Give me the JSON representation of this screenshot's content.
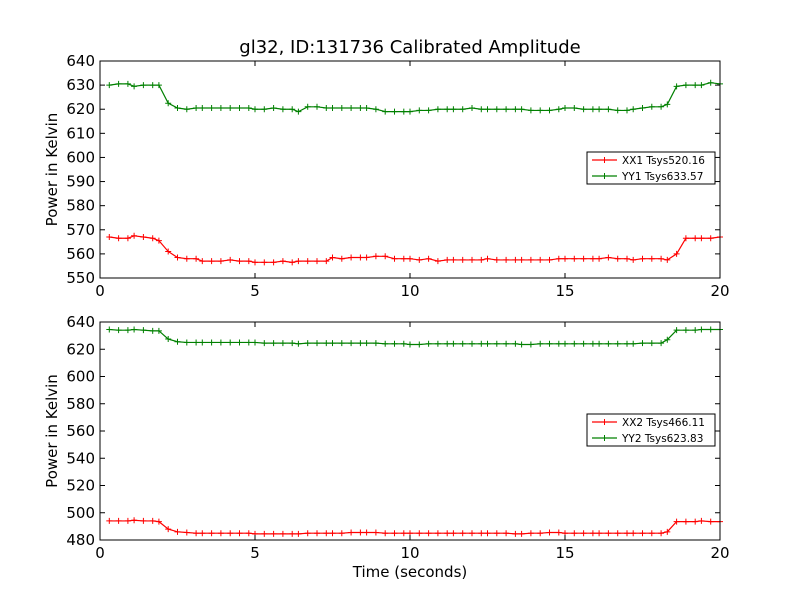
{
  "figure": {
    "title": "gl32, ID:131736 Calibrated Amplitude",
    "xlabel": "Time (seconds)"
  },
  "chart_data": [
    {
      "type": "line",
      "title": "gl32, ID:131736 Calibrated Amplitude",
      "xlabel": "",
      "ylabel": "Power in Kelvin",
      "xlim": [
        0,
        20
      ],
      "ylim": [
        550,
        640
      ],
      "xticks": [
        0,
        5,
        10,
        15,
        20
      ],
      "yticks": [
        550,
        560,
        570,
        580,
        590,
        600,
        610,
        620,
        630,
        640
      ],
      "grid": false,
      "legend_position": "center-right",
      "x": [
        0.3,
        0.6,
        0.9,
        1.1,
        1.4,
        1.7,
        1.9,
        2.2,
        2.5,
        2.8,
        3.1,
        3.3,
        3.6,
        3.9,
        4.2,
        4.5,
        4.8,
        5.0,
        5.3,
        5.6,
        5.9,
        6.2,
        6.4,
        6.7,
        7.0,
        7.3,
        7.5,
        7.8,
        8.1,
        8.4,
        8.6,
        8.9,
        9.2,
        9.5,
        9.8,
        10.0,
        10.3,
        10.6,
        10.9,
        11.2,
        11.4,
        11.7,
        12.0,
        12.3,
        12.5,
        12.8,
        13.1,
        13.4,
        13.6,
        13.9,
        14.2,
        14.5,
        14.8,
        15.0,
        15.3,
        15.6,
        15.9,
        16.1,
        16.4,
        16.7,
        17.0,
        17.2,
        17.5,
        17.8,
        18.1,
        18.3,
        18.6,
        18.9,
        19.2,
        19.4,
        19.7,
        20.0
      ],
      "series": [
        {
          "name": "XX1 Tsys520.16",
          "color": "#ff0000",
          "values": [
            567,
            566.5,
            566.5,
            567.5,
            567,
            566.5,
            565.5,
            561,
            558.5,
            558,
            558,
            557,
            557,
            557,
            557.5,
            557,
            557,
            556.5,
            556.5,
            556.5,
            557,
            556.5,
            557,
            557,
            557,
            557,
            558.5,
            558,
            558.5,
            558.5,
            558.5,
            559,
            559,
            558,
            558,
            558,
            557.5,
            558,
            557,
            557.5,
            557.5,
            557.5,
            557.5,
            557.5,
            558,
            557.5,
            557.5,
            557.5,
            557.5,
            557.5,
            557.5,
            557.5,
            558,
            558,
            558,
            558,
            558,
            558,
            558.5,
            558,
            558,
            557.5,
            558,
            558,
            558,
            557.5,
            560,
            566.5,
            566.5,
            566.5,
            566.5,
            567
          ]
        },
        {
          "name": "YY1 Tsys633.57",
          "color": "#008000",
          "values": [
            630,
            630.5,
            630.5,
            629.5,
            630,
            630,
            630,
            622.5,
            620.5,
            620,
            620.5,
            620.5,
            620.5,
            620.5,
            620.5,
            620.5,
            620.5,
            620,
            620,
            620.5,
            620,
            620,
            619,
            621,
            621,
            620.5,
            620.5,
            620.5,
            620.5,
            620.5,
            620.5,
            620,
            619,
            619,
            619,
            619,
            619.5,
            619.5,
            620,
            620,
            620,
            620,
            620.5,
            620,
            620,
            620,
            620,
            620,
            620,
            619.5,
            619.5,
            619.5,
            620,
            620.5,
            620.5,
            620,
            620,
            620,
            620,
            619.5,
            619.5,
            620,
            620.5,
            621,
            621,
            622,
            629.5,
            630,
            630,
            630,
            631,
            630.5
          ]
        }
      ]
    },
    {
      "type": "line",
      "title": "",
      "xlabel": "Time (seconds)",
      "ylabel": "Power in Kelvin",
      "xlim": [
        0,
        20
      ],
      "ylim": [
        480,
        640
      ],
      "xticks": [
        0,
        5,
        10,
        15,
        20
      ],
      "yticks": [
        480,
        500,
        520,
        540,
        560,
        580,
        600,
        620,
        640
      ],
      "grid": false,
      "legend_position": "center-right",
      "x": [
        0.3,
        0.6,
        0.9,
        1.1,
        1.4,
        1.7,
        1.9,
        2.2,
        2.5,
        2.8,
        3.1,
        3.3,
        3.6,
        3.9,
        4.2,
        4.5,
        4.8,
        5.0,
        5.3,
        5.6,
        5.9,
        6.2,
        6.4,
        6.7,
        7.0,
        7.3,
        7.5,
        7.8,
        8.1,
        8.4,
        8.6,
        8.9,
        9.2,
        9.5,
        9.8,
        10.0,
        10.3,
        10.6,
        10.9,
        11.2,
        11.4,
        11.7,
        12.0,
        12.3,
        12.5,
        12.8,
        13.1,
        13.4,
        13.6,
        13.9,
        14.2,
        14.5,
        14.8,
        15.0,
        15.3,
        15.6,
        15.9,
        16.1,
        16.4,
        16.7,
        17.0,
        17.2,
        17.5,
        17.8,
        18.1,
        18.3,
        18.6,
        18.9,
        19.2,
        19.4,
        19.7,
        20.0
      ],
      "series": [
        {
          "name": "XX2 Tsys466.11",
          "color": "#ff0000",
          "values": [
            494,
            494,
            494,
            494.5,
            494,
            494,
            493.5,
            488,
            486,
            485.5,
            485,
            485,
            485,
            485,
            485,
            485,
            485,
            484.5,
            484.5,
            484.5,
            484.5,
            484.5,
            484.5,
            485,
            485,
            485,
            485,
            485,
            485.5,
            485.5,
            485.5,
            485.5,
            485,
            485,
            485,
            485,
            485,
            485,
            485,
            485,
            485,
            485,
            485,
            485,
            485,
            485,
            485,
            484.5,
            484.5,
            485,
            485,
            485.5,
            485.5,
            485,
            485,
            485,
            485,
            485,
            485,
            485,
            485,
            485,
            485,
            485,
            485,
            486,
            493.5,
            493.5,
            493.5,
            494,
            493.5,
            493.5
          ]
        },
        {
          "name": "YY2 Tsys623.83",
          "color": "#008000",
          "values": [
            634.5,
            634,
            634,
            634.5,
            634,
            633.5,
            633.5,
            627.5,
            625.5,
            625,
            625,
            625,
            625,
            625,
            625,
            625,
            625,
            625,
            624.5,
            624.5,
            624.5,
            624.5,
            624,
            624.5,
            624.5,
            624.5,
            624.5,
            624.5,
            624.5,
            624.5,
            624.5,
            624.5,
            624,
            624,
            624,
            623.5,
            623.5,
            624,
            624,
            624,
            624,
            624,
            624,
            624,
            624,
            624,
            624,
            624,
            623.5,
            623.5,
            624,
            624,
            624,
            624,
            624,
            624,
            624,
            624,
            624,
            624,
            624,
            624,
            624.5,
            624.5,
            624.5,
            627,
            634,
            634,
            634,
            634.5,
            634.5,
            634.5
          ]
        }
      ]
    }
  ]
}
